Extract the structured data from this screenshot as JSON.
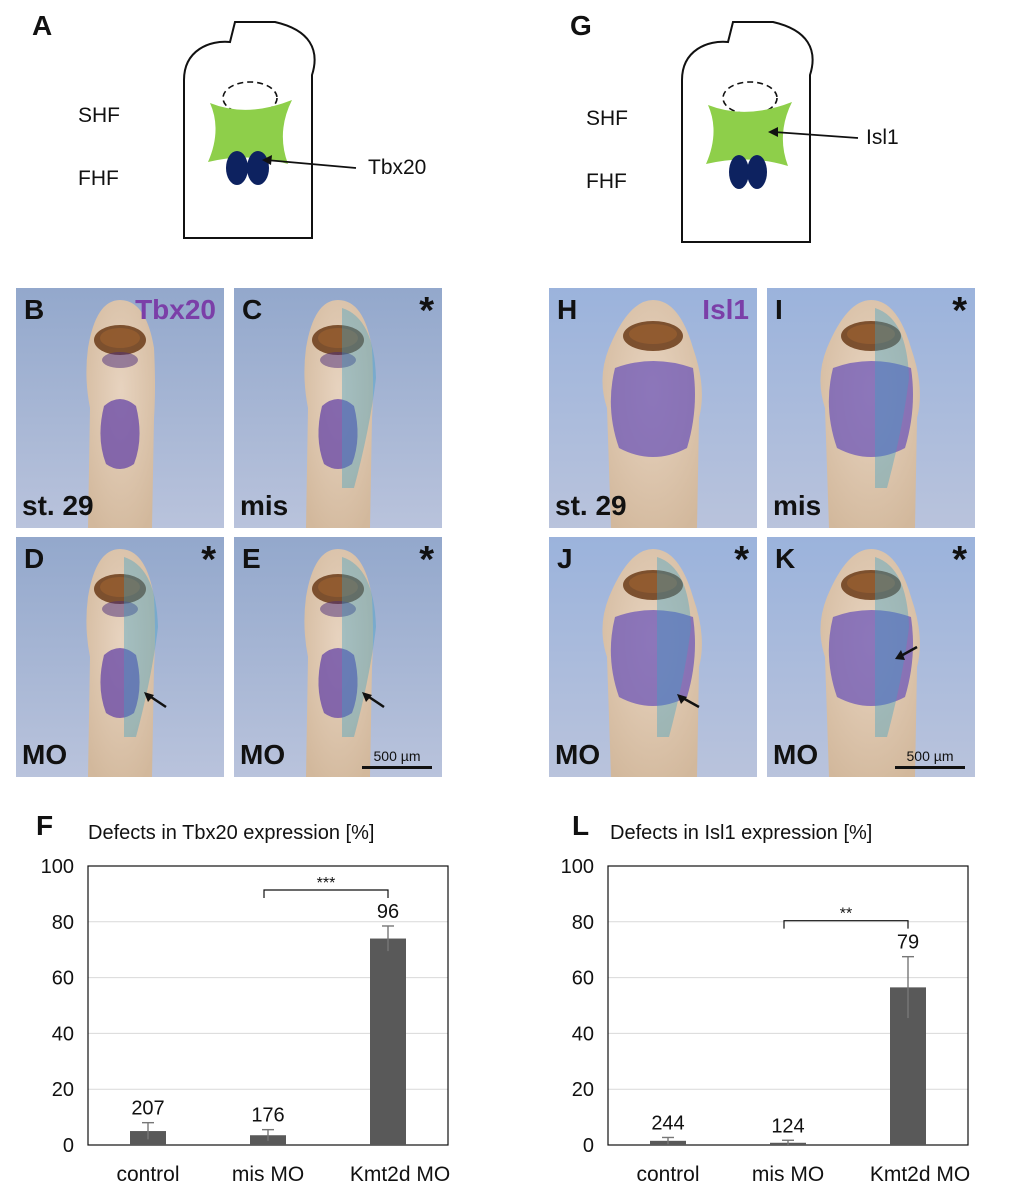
{
  "left": {
    "schematic": {
      "letter": "A",
      "shf": "SHF",
      "fhf": "FHF",
      "gene": "Tbx20"
    },
    "gene_title": "Tbx20",
    "gene_color": "#7b3fa8",
    "photos": [
      {
        "letter": "B",
        "star": "",
        "label": "st. 29",
        "scale": "",
        "dye": false
      },
      {
        "letter": "C",
        "star": "*",
        "label": "mis",
        "scale": "",
        "dye": true
      },
      {
        "letter": "D",
        "star": "*",
        "label": "MO",
        "scale": "",
        "dye": true
      },
      {
        "letter": "E",
        "star": "*",
        "label": "MO",
        "scale": "500 µm",
        "dye": true
      }
    ],
    "chart_letter": "F"
  },
  "right": {
    "schematic": {
      "letter": "G",
      "shf": "SHF",
      "fhf": "FHF",
      "gene": "Isl1"
    },
    "gene_title": "Isl1",
    "gene_color": "#7b3fa8",
    "photos": [
      {
        "letter": "H",
        "star": "",
        "label": "st. 29",
        "scale": "",
        "dye": false
      },
      {
        "letter": "I",
        "star": "*",
        "label": "mis",
        "scale": "",
        "dye": true
      },
      {
        "letter": "J",
        "star": "*",
        "label": "MO",
        "scale": "",
        "dye": true
      },
      {
        "letter": "K",
        "star": "*",
        "label": "MO",
        "scale": "500 µm",
        "dye": true
      }
    ],
    "chart_letter": "L"
  },
  "colors": {
    "shf_green": "#8ecf4a",
    "fhf_navy": "#0d2260",
    "bar": "#595959"
  },
  "chart_data": [
    {
      "type": "bar",
      "title": "Defects in Tbx20 expression [%]",
      "categories": [
        "control",
        "mis MO",
        "Kmt2d MO"
      ],
      "values": [
        5,
        3.5,
        74
      ],
      "errors": [
        3,
        2,
        4.5
      ],
      "n_labels": [
        "207",
        "176",
        "96"
      ],
      "ylim": [
        0,
        100
      ],
      "yticks": [
        0,
        20,
        40,
        60,
        80,
        100
      ],
      "significance": {
        "from": 1,
        "to": 2,
        "label": "***"
      },
      "grid": true
    },
    {
      "type": "bar",
      "title": "Defects in Isl1 expression [%]",
      "categories": [
        "control",
        "mis MO",
        "Kmt2d MO"
      ],
      "values": [
        1.5,
        0.8,
        56.5
      ],
      "errors": [
        1.2,
        0.9,
        11
      ],
      "n_labels": [
        "244",
        "124",
        "79"
      ],
      "ylim": [
        0,
        100
      ],
      "yticks": [
        0,
        20,
        40,
        60,
        80,
        100
      ],
      "significance": {
        "from": 1,
        "to": 2,
        "label": "**"
      },
      "grid": true
    }
  ]
}
